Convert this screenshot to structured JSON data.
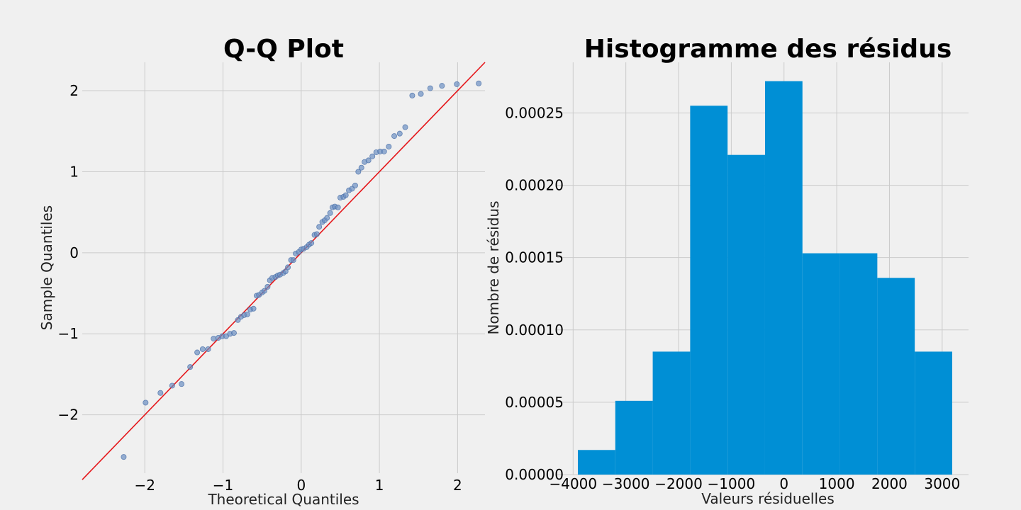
{
  "chart_data": [
    {
      "type": "scatter",
      "title": "Q-Q Plot",
      "xlabel": "Theoretical Quantiles",
      "ylabel": "Sample Quantiles",
      "xlim": [
        -2.8,
        2.35
      ],
      "ylim": [
        -2.72,
        2.35
      ],
      "xticks": [
        -2,
        -1,
        0,
        1,
        2
      ],
      "yticks": [
        -2,
        -1,
        0,
        1,
        2
      ],
      "xtick_labels": [
        "−2",
        "−1",
        "0",
        "1",
        "2"
      ],
      "ytick_labels": [
        "−2",
        "−1",
        "0",
        "1",
        "2"
      ],
      "grid": true,
      "series": [
        {
          "marker_color": "#6b8fc2",
          "x": [
            -2.27,
            -1.99,
            -1.8,
            -1.65,
            -1.53,
            -1.42,
            -1.33,
            -1.26,
            -1.19,
            -1.12,
            -1.06,
            -1.01,
            -0.96,
            -0.91,
            -0.86,
            -0.81,
            -0.77,
            -0.73,
            -0.69,
            -0.65,
            -0.61,
            -0.57,
            -0.54,
            -0.5,
            -0.47,
            -0.43,
            -0.4,
            -0.37,
            -0.33,
            -0.3,
            -0.27,
            -0.23,
            -0.2,
            -0.17,
            -0.13,
            -0.1,
            -0.07,
            -0.03,
            0.0,
            0.03,
            0.07,
            0.1,
            0.13,
            0.17,
            0.2,
            0.23,
            0.27,
            0.3,
            0.33,
            0.37,
            0.4,
            0.43,
            0.47,
            0.5,
            0.54,
            0.57,
            0.61,
            0.65,
            0.69,
            0.73,
            0.77,
            0.81,
            0.86,
            0.91,
            0.96,
            1.01,
            1.06,
            1.12,
            1.19,
            1.26,
            1.33,
            1.42,
            1.53,
            1.65,
            1.8,
            1.99,
            2.27
          ],
          "y": [
            -2.52,
            -1.85,
            -1.73,
            -1.64,
            -1.62,
            -1.41,
            -1.23,
            -1.19,
            -1.19,
            -1.06,
            -1.05,
            -1.03,
            -1.03,
            -1.0,
            -0.99,
            -0.83,
            -0.79,
            -0.77,
            -0.76,
            -0.7,
            -0.69,
            -0.53,
            -0.52,
            -0.49,
            -0.47,
            -0.42,
            -0.34,
            -0.31,
            -0.3,
            -0.28,
            -0.27,
            -0.25,
            -0.23,
            -0.18,
            -0.09,
            -0.09,
            -0.01,
            0.01,
            0.04,
            0.05,
            0.07,
            0.1,
            0.12,
            0.22,
            0.23,
            0.32,
            0.38,
            0.4,
            0.43,
            0.49,
            0.56,
            0.57,
            0.56,
            0.68,
            0.69,
            0.71,
            0.77,
            0.79,
            0.83,
            1.0,
            1.05,
            1.12,
            1.14,
            1.19,
            1.24,
            1.25,
            1.25,
            1.31,
            1.44,
            1.47,
            1.55,
            1.94,
            1.96,
            2.03,
            2.06,
            2.08,
            2.09
          ]
        }
      ],
      "reference_line": {
        "color": "#e5161a",
        "slope": 1.0,
        "intercept": 0.0
      }
    },
    {
      "type": "bar",
      "title": "Histogramme des résidus",
      "xlabel": "Valeurs résiduelles",
      "ylabel": "Nombre de résidus",
      "xlim": [
        -4300,
        3500
      ],
      "ylim": [
        0,
        0.000285
      ],
      "xticks": [
        -4000,
        -3000,
        -2000,
        -1000,
        0,
        1000,
        2000,
        3000
      ],
      "yticks": [
        0,
        5e-05,
        0.0001,
        0.00015,
        0.0002,
        0.00025
      ],
      "xtick_labels": [
        "−4000",
        "−3000",
        "−2000",
        "−1000",
        "0",
        "1000",
        "2000",
        "3000"
      ],
      "ytick_labels": [
        "0.00000",
        "0.00005",
        "0.00010",
        "0.00015",
        "0.00020",
        "0.00025"
      ],
      "grid": true,
      "bar_color": "#008fd5",
      "bin_edges": [
        -3910,
        -3200,
        -2490,
        -1780,
        -1070,
        -360,
        350,
        1060,
        1770,
        2480,
        3190
      ],
      "values": [
        1.7e-05,
        5.1e-05,
        8.5e-05,
        0.000255,
        0.000221,
        0.000272,
        0.000153,
        0.000153,
        0.000136,
        8.5e-05
      ]
    }
  ]
}
